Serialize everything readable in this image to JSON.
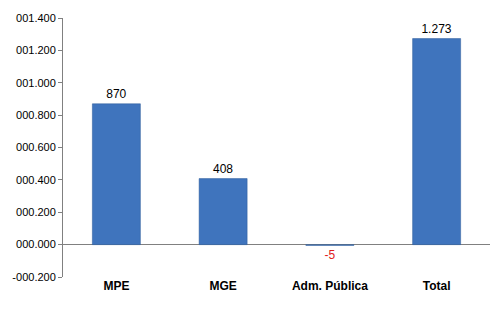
{
  "chart_data": {
    "type": "bar",
    "categories": [
      "MPE",
      "MGE",
      "Adm. Pública",
      "Total"
    ],
    "values": [
      870,
      408,
      -5,
      1273
    ],
    "value_labels": [
      "870",
      "408",
      "-5",
      "1.273"
    ],
    "color": "#3f74bd",
    "data_labels": true,
    "grid": false,
    "ylim": [
      -200,
      1400
    ],
    "yticks": [
      {
        "value": -200,
        "label": "-000.200"
      },
      {
        "value": 0,
        "label": "000.000"
      },
      {
        "value": 200,
        "label": "000.200"
      },
      {
        "value": 400,
        "label": "000.400"
      },
      {
        "value": 600,
        "label": "000.600"
      },
      {
        "value": 800,
        "label": "000.800"
      },
      {
        "value": 1000,
        "label": "001.000"
      },
      {
        "value": 1200,
        "label": "001.200"
      },
      {
        "value": 1400,
        "label": "001.400"
      }
    ]
  }
}
